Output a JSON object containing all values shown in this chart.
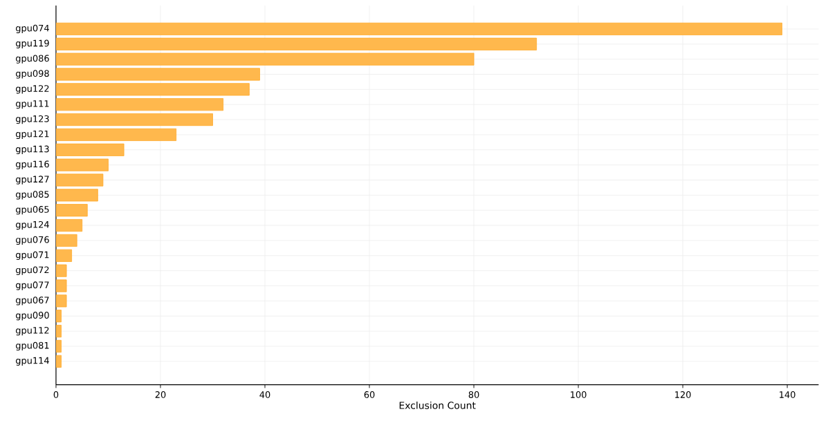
{
  "chart_data": {
    "type": "bar",
    "orientation": "horizontal",
    "xlabel": "Exclusion Count",
    "categories": [
      "gpu074",
      "gpu119",
      "gpu086",
      "gpu098",
      "gpu122",
      "gpu111",
      "gpu123",
      "gpu121",
      "gpu113",
      "gpu116",
      "gpu127",
      "gpu085",
      "gpu065",
      "gpu124",
      "gpu076",
      "gpu071",
      "gpu072",
      "gpu077",
      "gpu067",
      "gpu090",
      "gpu112",
      "gpu081",
      "gpu114"
    ],
    "values": [
      139,
      92,
      80,
      39,
      37,
      32,
      30,
      23,
      13,
      10,
      9,
      8,
      6,
      5,
      4,
      3,
      2,
      2,
      2,
      1,
      1,
      1,
      1
    ],
    "color": "#ffb84d",
    "xlim": [
      0,
      146
    ],
    "xticks": [
      0,
      20,
      40,
      60,
      80,
      100,
      120,
      140
    ],
    "grid": true
  }
}
